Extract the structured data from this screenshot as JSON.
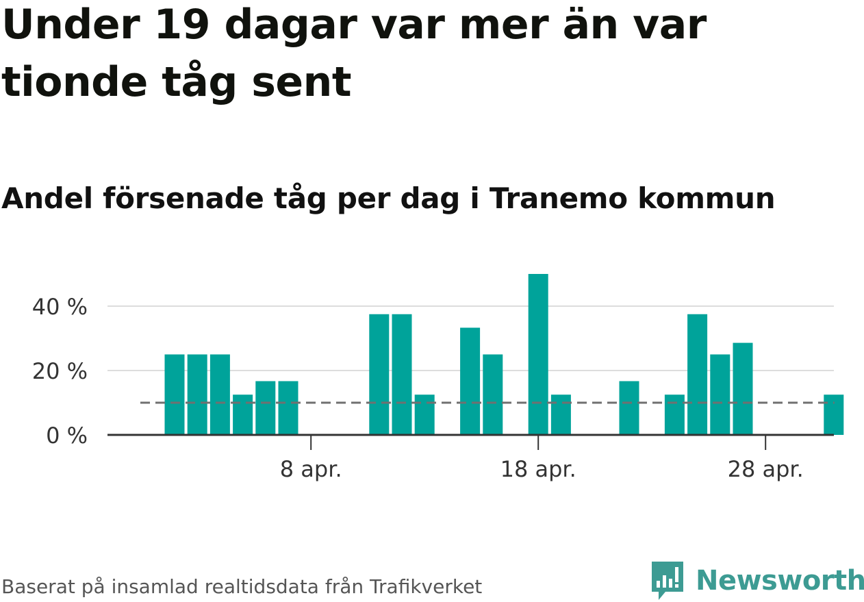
{
  "headline": "Under 19 dagar var mer än var tionde tåg sent",
  "subtitle": "Andel försenade tåg per dag i Tranemo kommun",
  "footer": "Baserat på insamlad realtidsdata från Trafikverket",
  "brand": {
    "name": "Newsworthy",
    "icon": "newsworthy-logo-icon",
    "color": "#3d9b93"
  },
  "colors": {
    "bar": "#00a39a",
    "reference_line": "#707070",
    "grid": "#dddddd",
    "axis": "#333333"
  },
  "chart_data": {
    "type": "bar",
    "start_date": "2 apr.",
    "values": [
      25,
      25,
      25,
      12.5,
      16.7,
      16.7,
      0,
      0,
      0,
      37.5,
      37.5,
      12.5,
      0,
      33.3,
      25,
      0,
      50,
      12.5,
      0,
      0,
      16.7,
      0,
      12.5,
      37.5,
      25,
      28.6,
      0,
      0,
      0,
      12.5
    ],
    "xticks": [
      {
        "index": 6,
        "label": "8 apr."
      },
      {
        "index": 16,
        "label": "18 apr."
      },
      {
        "index": 26,
        "label": "28 apr."
      }
    ],
    "yticks": [
      {
        "value": 0,
        "label": "0 %"
      },
      {
        "value": 20,
        "label": "20 %"
      },
      {
        "value": 40,
        "label": "40 %"
      }
    ],
    "ylim": [
      0,
      50
    ],
    "reference_line": 10,
    "grid": true
  }
}
